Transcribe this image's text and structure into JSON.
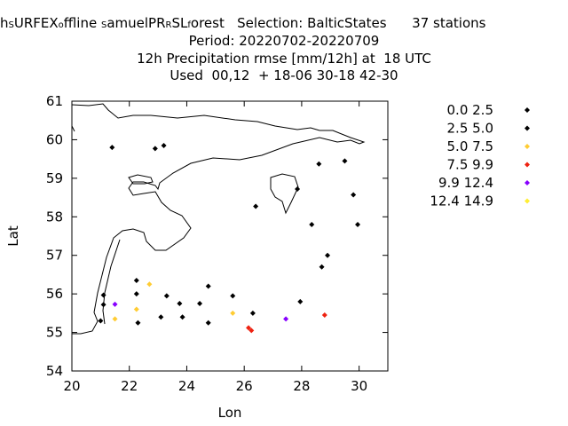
{
  "title_lines": [
    "12h Precipitation rmse [mm/12h] at  18 UTC",
    "Used  00,12  + 18-06 30-18 42-30"
  ],
  "title_first_line": {
    "part1": "h",
    "part2": "URFEX",
    "sub1": "S",
    "part3": "ffline ",
    "sub2": "o",
    "sub3": "S",
    "part4": "amuelPR",
    "sub4": "R",
    "part5": "SL",
    "sub5": "f",
    "part6": "orest   Selection: BalticStates      37 stations"
  },
  "title_period": "Period: 20220702-20220709",
  "chart_data": {
    "type": "scatter",
    "xlabel": "Lon",
    "ylabel": "Lat",
    "xlim": [
      20,
      31
    ],
    "ylim": [
      54,
      61
    ],
    "xticks": [
      "20",
      "22",
      "24",
      "26",
      "28",
      "30"
    ],
    "yticks": [
      "54",
      "55",
      "56",
      "57",
      "58",
      "59",
      "60",
      "61"
    ],
    "legend_position": "right",
    "series": [
      {
        "name": "0.0 2.5",
        "color": "#000000",
        "points": []
      },
      {
        "name": "2.5 5.0",
        "color": "#000000",
        "points": [
          [
            21.4,
            59.8
          ],
          [
            22.9,
            59.77
          ],
          [
            23.2,
            59.85
          ],
          [
            21.1,
            55.97
          ],
          [
            21.1,
            55.72
          ],
          [
            21.0,
            55.3
          ],
          [
            22.25,
            56.35
          ],
          [
            22.25,
            56.0
          ],
          [
            22.3,
            55.25
          ],
          [
            23.1,
            55.4
          ],
          [
            23.3,
            55.95
          ],
          [
            23.75,
            55.75
          ],
          [
            23.85,
            55.4
          ],
          [
            24.45,
            55.75
          ],
          [
            24.75,
            56.2
          ],
          [
            24.75,
            55.25
          ],
          [
            25.6,
            55.95
          ],
          [
            26.3,
            55.5
          ],
          [
            26.4,
            58.27
          ],
          [
            27.85,
            58.72
          ],
          [
            27.95,
            55.8
          ],
          [
            28.35,
            57.8
          ],
          [
            28.6,
            59.37
          ],
          [
            28.7,
            56.7
          ],
          [
            28.9,
            57.0
          ],
          [
            29.5,
            59.45
          ],
          [
            29.8,
            58.57
          ],
          [
            29.95,
            57.8
          ]
        ]
      },
      {
        "name": "5.0 7.5",
        "color": "#ffcc33",
        "points": [
          [
            21.5,
            55.35
          ],
          [
            22.25,
            55.6
          ],
          [
            22.7,
            56.25
          ],
          [
            25.6,
            55.5
          ]
        ]
      },
      {
        "name": "7.5 9.9",
        "color": "#ee2211",
        "points": [
          [
            26.15,
            55.12
          ],
          [
            26.25,
            55.05
          ],
          [
            28.8,
            55.45
          ]
        ]
      },
      {
        "name": "9.9 12.4",
        "color": "#8800ff",
        "points": [
          [
            21.5,
            55.73
          ],
          [
            27.45,
            55.35
          ]
        ]
      },
      {
        "name": "12.4 14.9",
        "color": "#ffee33",
        "points": []
      }
    ]
  }
}
